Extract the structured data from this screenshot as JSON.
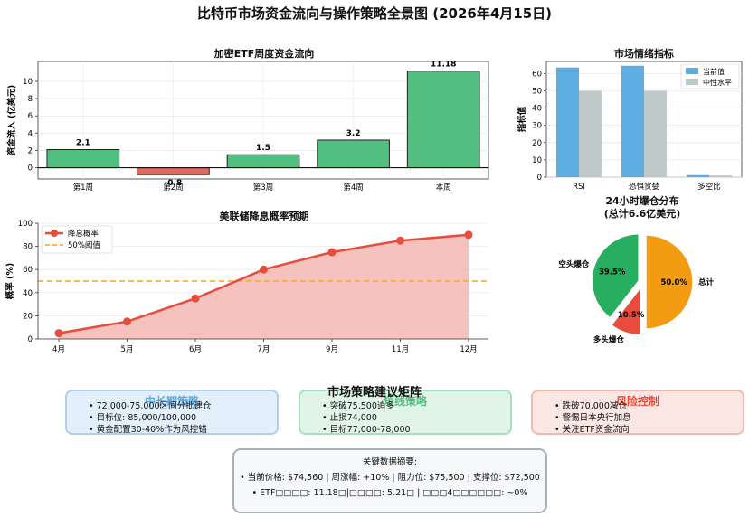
{
  "page_title": "比特币市场资金流向与操作策略全景图 (2026年4月15日)",
  "chart_data": [
    {
      "type": "bar",
      "title": "加密ETF周度资金流向",
      "ylabel": "资金流入 (亿美元)",
      "categories": [
        "第1周",
        "第2周",
        "第3周",
        "第4周",
        "本周"
      ],
      "values": [
        2.1,
        -0.8,
        1.5,
        3.2,
        11.18
      ],
      "value_labels": [
        "2.1",
        "-0.8",
        "1.5",
        "3.2",
        "11.18"
      ],
      "yticks": [
        "0",
        "2",
        "4",
        "6",
        "8",
        "10"
      ],
      "ylim": [
        -1.3,
        12.3
      ],
      "colors": {
        "positive": "#52be80",
        "negative": "#e06a60"
      }
    },
    {
      "type": "bar",
      "title": "市场情绪指标",
      "ylabel": "指标值",
      "categories": [
        "RSI",
        "恐惧贪婪",
        "多空比"
      ],
      "series": [
        {
          "name": "当前值",
          "values": [
            63.5,
            64.5,
            1.2
          ],
          "color": "#5dade2"
        },
        {
          "name": "中性水平",
          "values": [
            50,
            50,
            1.0
          ],
          "color": "#bfc9ca"
        }
      ],
      "yticks": [
        "0",
        "10",
        "20",
        "30",
        "40",
        "50",
        "60"
      ],
      "ylim": [
        0,
        67
      ]
    },
    {
      "type": "line",
      "title": "美联储降息概率预期",
      "ylabel": "概率 (%)",
      "categories": [
        "4月",
        "5月",
        "6月",
        "7月",
        "9月",
        "11月",
        "12月"
      ],
      "values": [
        5,
        15,
        35,
        60,
        75,
        85,
        90
      ],
      "threshold": 50,
      "legend": [
        "降息概率",
        "50%阈值"
      ],
      "yticks": [
        "0",
        "20",
        "40",
        "60",
        "80",
        "100"
      ],
      "ylim": [
        0,
        100
      ],
      "colors": {
        "line": "#e74c3c",
        "threshold": "#f5b041"
      }
    },
    {
      "type": "pie",
      "title": "24小时爆仓分布",
      "subtitle": "(总计6.6亿美元)",
      "slices": [
        {
          "label": "总计",
          "value": 50.0,
          "pct_label": "50.0%",
          "color": "#f39c12"
        },
        {
          "label": "多头爆仓",
          "value": 10.5,
          "pct_label": "10.5%",
          "color": "#e74c3c"
        },
        {
          "label": "空头爆仓",
          "value": 39.5,
          "pct_label": "39.5%",
          "color": "#27ae60"
        }
      ]
    }
  ],
  "matrix": {
    "title": "市场策略建议矩阵",
    "mid_long": {
      "title": "中长期策略",
      "items": [
        "72,000-75,000区间分批建仓",
        "目标位: 85,000/100,000",
        "黄金配置30-40%作为风控锚"
      ]
    },
    "short": {
      "title": "短线策略",
      "items": [
        "突破75,500追多",
        "止损74,000",
        "目标77,000-78,000"
      ]
    },
    "risk": {
      "title": "风险控制",
      "items": [
        "跌破70,000减仓",
        "警惕日本央行加息",
        "关注ETF资金流向"
      ]
    }
  },
  "key_data": {
    "title": "关键数据摘要:",
    "line1": "• 当前价格: $74,560 | 周涨幅: +10% | 阻力位: $75,500 | 支撑位: $72,500",
    "line2": "• ETF□□□□: 11.18□|□□□□: 5.21□ | □□□4□□□□□□: ~0%"
  },
  "colors": {
    "mid_long_bg": "#e3effa",
    "mid_long_border": "#aed0ee",
    "mid_long_title": "#5dade2",
    "short_bg": "#e2f4e8",
    "short_border": "#a9dfbf",
    "short_title": "#52be80",
    "risk_bg": "#fbe7e4",
    "risk_border": "#f2b8b0",
    "risk_title": "#e74c3c"
  }
}
